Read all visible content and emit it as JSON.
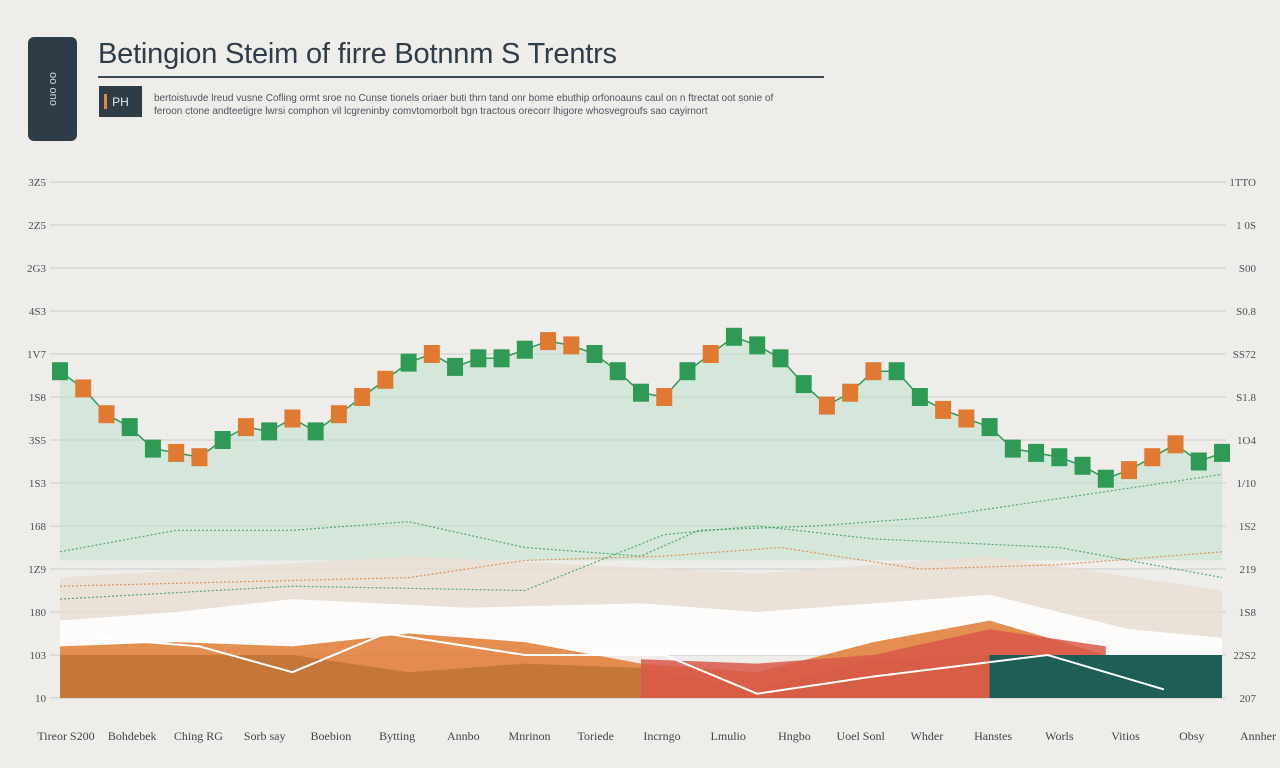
{
  "header": {
    "title": "Betingion Steim of firre Botnnm S Trentrs",
    "badge": "ouo oo",
    "tag": "PH",
    "subtitle_lines": [
      "bertoistuvde lreud vusne Cofling ormt sroe no Cunse tionels oriaer buti thrn tand onr bome ebuthip orfonoauns caul on n ftrectat oot sonie of",
      "feroon ctone andteetigre lwrsi comphon vil lcgreninby comvtomorbolt bgn tractous orecorr lhigore whosvegroufs sao cayirnort"
    ]
  },
  "colors": {
    "green": "#2f9a55",
    "orange": "#e07a32",
    "dark_teal": "#1f5e57",
    "red": "#d9584a",
    "mint_fill": "#bfe1cc",
    "background": "#eeedea"
  },
  "chart_data": {
    "type": "line",
    "title": "Betingion Steim of firre Botnnm S Trentrs",
    "grid": true,
    "legend": "none",
    "y_left_ticks": [
      "3Z5",
      "2Z5",
      "2G3",
      "4S3",
      "1V7",
      "1S8",
      "3S5",
      "1S3",
      "168",
      "1Z9",
      "180",
      "103",
      "10"
    ],
    "y_right_ticks": [
      "1TTO",
      "1 0S",
      "S00",
      "S0.8",
      "SS72",
      "S1.8",
      "1O4",
      "1/10",
      "1S2",
      "219",
      "1S8",
      "22S2",
      "207"
    ],
    "x_labels": [
      "Tireor S200",
      "Bohdebek",
      "Ching RG",
      "Sorb say",
      "Boebion",
      "Bytting",
      "Annbo",
      "Mnrinon",
      "Toriede",
      "Incrngo",
      "Lmulio",
      "Hngbo",
      "Uoel Sonl",
      "Whder",
      "Hanstes",
      "Worls",
      "Vitios",
      "Obsy",
      "Annher"
    ],
    "ylim": [
      0,
      12
    ],
    "x_range": [
      0,
      100
    ],
    "series": [
      {
        "points": [
          [
            0,
            7.6
          ],
          [
            2,
            7.2
          ],
          [
            4,
            6.6
          ],
          [
            6,
            6.3
          ],
          [
            8,
            5.8
          ],
          [
            10,
            5.7
          ],
          [
            12,
            5.6
          ],
          [
            14,
            6.0
          ],
          [
            16,
            6.3
          ],
          [
            18,
            6.2
          ],
          [
            20,
            6.5
          ],
          [
            22,
            6.2
          ],
          [
            24,
            6.6
          ],
          [
            26,
            7.0
          ],
          [
            28,
            7.4
          ],
          [
            30,
            7.8
          ],
          [
            32,
            8.0
          ],
          [
            34,
            7.7
          ],
          [
            36,
            7.9
          ],
          [
            38,
            7.9
          ],
          [
            40,
            8.1
          ],
          [
            42,
            8.3
          ],
          [
            44,
            8.2
          ],
          [
            46,
            8.0
          ],
          [
            48,
            7.6
          ],
          [
            50,
            7.1
          ],
          [
            52,
            7.0
          ],
          [
            54,
            7.6
          ],
          [
            56,
            8.0
          ],
          [
            58,
            8.4
          ],
          [
            60,
            8.2
          ],
          [
            62,
            7.9
          ],
          [
            64,
            7.3
          ],
          [
            66,
            6.8
          ],
          [
            68,
            7.1
          ],
          [
            70,
            7.6
          ],
          [
            72,
            7.6
          ],
          [
            74,
            7.0
          ],
          [
            76,
            6.7
          ],
          [
            78,
            6.5
          ],
          [
            80,
            6.3
          ],
          [
            82,
            5.8
          ],
          [
            84,
            5.7
          ],
          [
            86,
            5.6
          ],
          [
            88,
            5.4
          ],
          [
            90,
            5.1
          ],
          [
            92,
            5.3
          ],
          [
            94,
            5.6
          ],
          [
            96,
            5.9
          ],
          [
            98,
            5.5
          ],
          [
            100,
            5.7
          ]
        ],
        "green_at": [
          0,
          6,
          8,
          14,
          18,
          22,
          30,
          34,
          36,
          38,
          40,
          46,
          48,
          50,
          54,
          58,
          60,
          62,
          64,
          72,
          74,
          80,
          82,
          84,
          86,
          88,
          90,
          98,
          100
        ]
      }
    ],
    "areas": [
      {
        "name": "",
        "color": "#1f5e57",
        "values": [
          [
            0,
            1.0
          ],
          [
            10,
            1.0
          ],
          [
            20,
            1.0
          ],
          [
            30,
            0.6
          ],
          [
            40,
            0.8
          ],
          [
            50,
            0.7
          ],
          [
            60,
            0.2
          ],
          [
            70,
            0.9
          ],
          [
            80,
            1.0
          ],
          [
            90,
            1.0
          ],
          [
            100,
            1.0
          ]
        ]
      },
      {
        "name": "",
        "color": "#e07a32",
        "values": [
          [
            0,
            1.2
          ],
          [
            10,
            1.3
          ],
          [
            20,
            1.2
          ],
          [
            30,
            1.5
          ],
          [
            40,
            1.3
          ],
          [
            50,
            0.8
          ],
          [
            60,
            0.6
          ],
          [
            70,
            1.3
          ],
          [
            80,
            1.8
          ],
          [
            90,
            1.0
          ],
          [
            100,
            1.0
          ]
        ]
      },
      {
        "name": "",
        "color": "#d9584a",
        "values": [
          [
            50,
            0.9
          ],
          [
            60,
            0.8
          ],
          [
            70,
            1.0
          ],
          [
            80,
            1.6
          ],
          [
            90,
            1.2
          ]
        ]
      }
    ]
  }
}
